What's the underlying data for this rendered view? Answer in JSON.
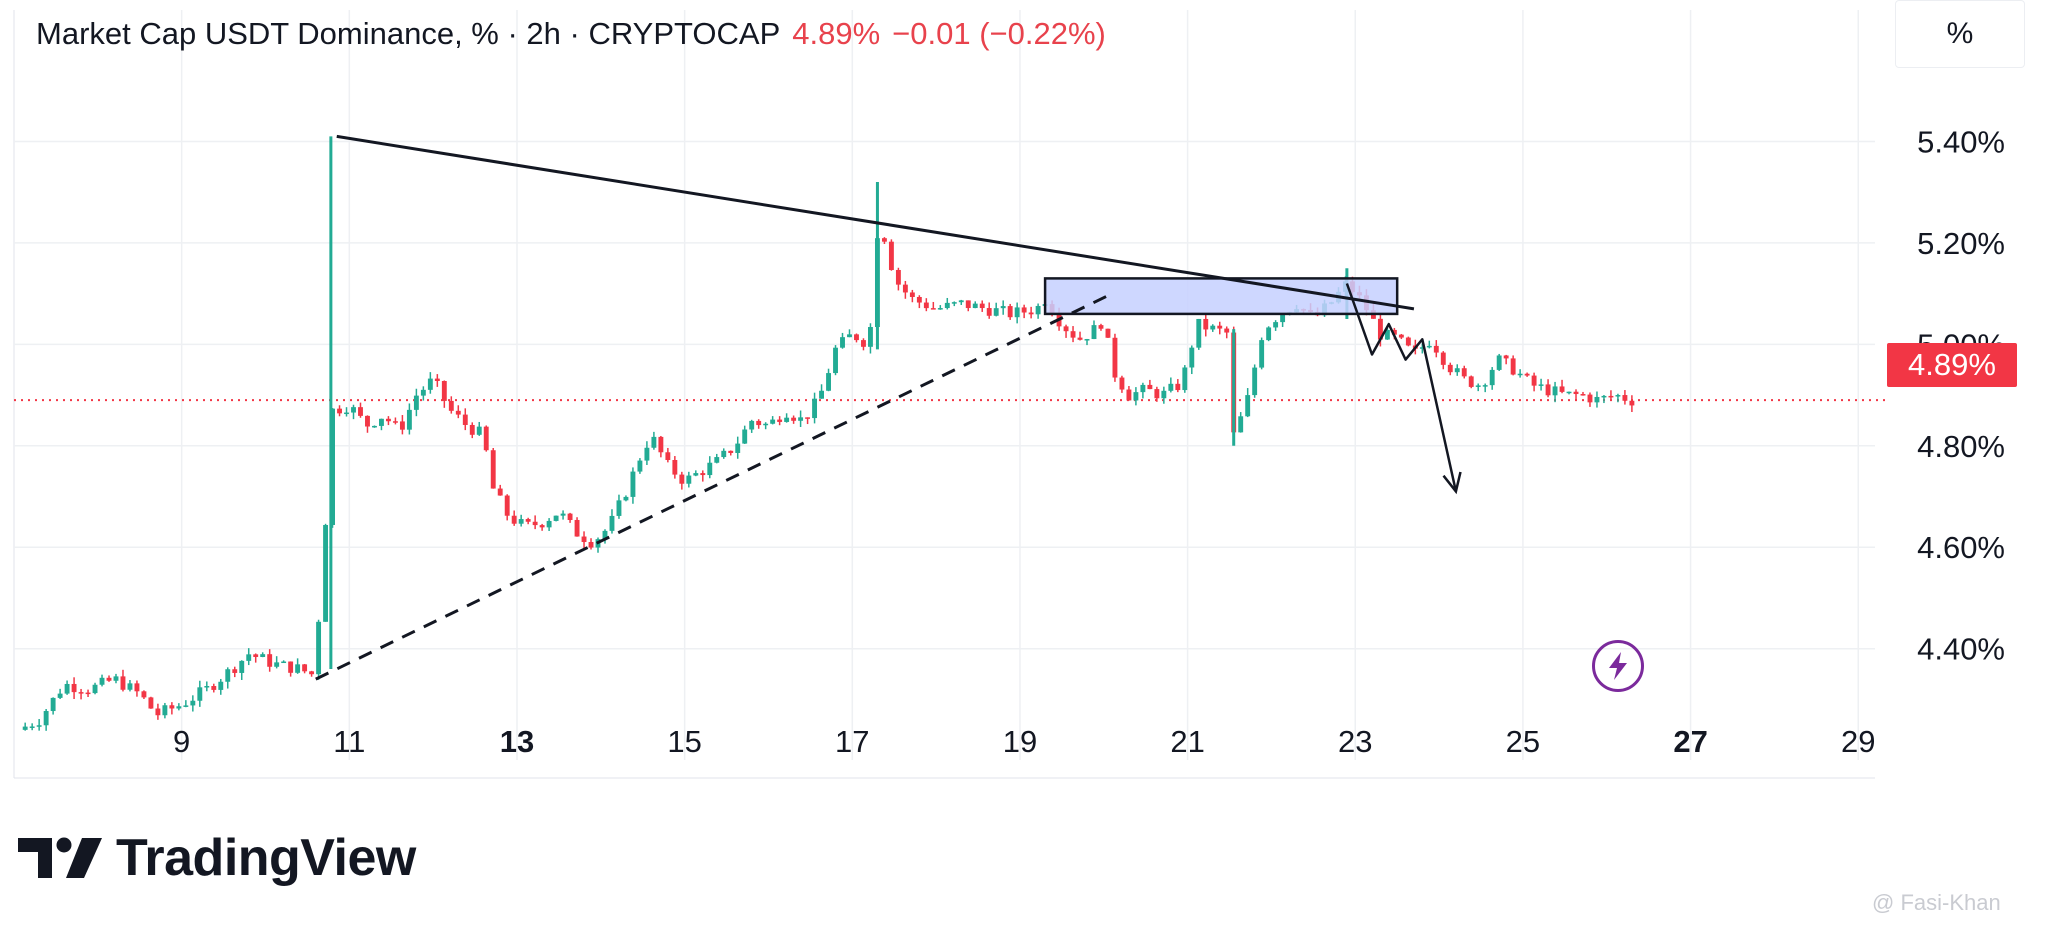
{
  "header": {
    "title": "Market Cap USDT Dominance, % · 2h · CRYPTOCAP",
    "last_value": "4.89%",
    "change": "−0.01 (−0.22%)"
  },
  "scale_button_label": "%",
  "price_tag": "4.89%",
  "brand": "TradingView",
  "credit": "@ Fasi-Khan",
  "colors": {
    "up": "#22ab94",
    "down": "#f23645",
    "accent": "#7b2a9c",
    "zone": "#c5d0ff"
  },
  "chart_data": {
    "type": "candlestick",
    "title": "Market Cap USDT Dominance, % · 2h · CRYPTOCAP",
    "x_ticks": [
      {
        "label": "9",
        "day": 9,
        "bold": false
      },
      {
        "label": "11",
        "day": 11,
        "bold": false
      },
      {
        "label": "13",
        "day": 13,
        "bold": true
      },
      {
        "label": "15",
        "day": 15,
        "bold": false
      },
      {
        "label": "17",
        "day": 17,
        "bold": false
      },
      {
        "label": "19",
        "day": 19,
        "bold": false
      },
      {
        "label": "21",
        "day": 21,
        "bold": false
      },
      {
        "label": "23",
        "day": 23,
        "bold": false
      },
      {
        "label": "25",
        "day": 25,
        "bold": false
      },
      {
        "label": "27",
        "day": 27,
        "bold": true
      },
      {
        "label": "29",
        "day": 29,
        "bold": false
      }
    ],
    "y_ticks": [
      "5.40%",
      "5.20%",
      "5.00%",
      "4.80%",
      "4.60%",
      "4.40%"
    ],
    "y_tick_values": [
      5.4,
      5.2,
      5.0,
      4.8,
      4.6,
      4.4
    ],
    "ylim": [
      4.22,
      5.6
    ],
    "xlim": [
      7.0,
      29.2
    ],
    "last_price": 4.89,
    "close_path": [
      [
        7.05,
        4.24
      ],
      [
        7.3,
        4.26
      ],
      [
        7.6,
        4.33
      ],
      [
        7.9,
        4.32
      ],
      [
        8.2,
        4.34
      ],
      [
        8.5,
        4.31
      ],
      [
        8.7,
        4.27
      ],
      [
        9.0,
        4.29
      ],
      [
        9.3,
        4.32
      ],
      [
        9.6,
        4.36
      ],
      [
        9.8,
        4.39
      ],
      [
        10.1,
        4.37
      ],
      [
        10.4,
        4.36
      ],
      [
        10.55,
        4.35
      ],
      [
        10.6,
        4.4
      ],
      [
        10.7,
        4.58
      ],
      [
        10.75,
        4.8
      ],
      [
        10.8,
        4.87
      ],
      [
        11.0,
        4.88
      ],
      [
        11.2,
        4.84
      ],
      [
        11.4,
        4.86
      ],
      [
        11.6,
        4.83
      ],
      [
        11.8,
        4.9
      ],
      [
        12.0,
        4.93
      ],
      [
        12.2,
        4.87
      ],
      [
        12.4,
        4.84
      ],
      [
        12.6,
        4.82
      ],
      [
        12.7,
        4.72
      ],
      [
        12.9,
        4.66
      ],
      [
        13.1,
        4.64
      ],
      [
        13.3,
        4.65
      ],
      [
        13.5,
        4.67
      ],
      [
        13.7,
        4.63
      ],
      [
        13.9,
        4.61
      ],
      [
        14.1,
        4.64
      ],
      [
        14.3,
        4.71
      ],
      [
        14.5,
        4.79
      ],
      [
        14.6,
        4.82
      ],
      [
        14.8,
        4.76
      ],
      [
        15.0,
        4.73
      ],
      [
        15.2,
        4.75
      ],
      [
        15.4,
        4.77
      ],
      [
        15.6,
        4.8
      ],
      [
        15.8,
        4.85
      ],
      [
        16.0,
        4.84
      ],
      [
        16.2,
        4.87
      ],
      [
        16.4,
        4.85
      ],
      [
        16.6,
        4.89
      ],
      [
        16.8,
        4.99
      ],
      [
        17.0,
        5.02
      ],
      [
        17.2,
        5.0
      ],
      [
        17.25,
        5.1
      ],
      [
        17.3,
        5.22
      ],
      [
        17.4,
        5.21
      ],
      [
        17.5,
        5.13
      ],
      [
        17.7,
        5.09
      ],
      [
        18.0,
        5.07
      ],
      [
        18.3,
        5.08
      ],
      [
        18.6,
        5.07
      ],
      [
        18.9,
        5.06
      ],
      [
        19.2,
        5.07
      ],
      [
        19.3,
        5.09
      ],
      [
        19.5,
        5.04
      ],
      [
        19.7,
        5.01
      ],
      [
        19.9,
        5.03
      ],
      [
        20.0,
        5.05
      ],
      [
        20.1,
        4.95
      ],
      [
        20.3,
        4.9
      ],
      [
        20.5,
        4.91
      ],
      [
        20.7,
        4.9
      ],
      [
        20.9,
        4.92
      ],
      [
        21.0,
        4.96
      ],
      [
        21.1,
        5.04
      ],
      [
        21.3,
        5.03
      ],
      [
        21.5,
        5.02
      ],
      [
        21.55,
        4.82
      ],
      [
        21.7,
        4.88
      ],
      [
        21.9,
        5.03
      ],
      [
        22.1,
        5.06
      ],
      [
        22.3,
        5.08
      ],
      [
        22.5,
        5.05
      ],
      [
        22.7,
        5.08
      ],
      [
        22.9,
        5.12
      ],
      [
        23.1,
        5.08
      ],
      [
        23.3,
        5.02
      ],
      [
        23.5,
        5.01
      ],
      [
        23.7,
        4.98
      ],
      [
        23.9,
        5.01
      ],
      [
        24.1,
        4.96
      ],
      [
        24.3,
        4.93
      ],
      [
        24.5,
        4.92
      ],
      [
        24.7,
        4.97
      ],
      [
        24.9,
        4.95
      ],
      [
        25.1,
        4.92
      ],
      [
        25.3,
        4.91
      ],
      [
        25.5,
        4.9
      ],
      [
        25.7,
        4.9
      ],
      [
        25.9,
        4.89
      ],
      [
        26.1,
        4.9
      ],
      [
        26.3,
        4.89
      ]
    ],
    "spikes": [
      {
        "day": 10.78,
        "high": 5.41,
        "low": 4.36
      },
      {
        "day": 17.3,
        "high": 5.32,
        "low": 4.99
      },
      {
        "day": 21.55,
        "high": 5.03,
        "low": 4.8
      },
      {
        "day": 22.9,
        "high": 5.15,
        "low": 5.05
      }
    ],
    "drawings": {
      "resistance_line": [
        [
          10.85,
          5.41
        ],
        [
          23.7,
          5.07
        ]
      ],
      "support_line_dashed": [
        [
          10.6,
          4.34
        ],
        [
          20.1,
          5.1
        ]
      ],
      "zone": {
        "day_start": 19.3,
        "day_end": 23.5,
        "price_low": 5.06,
        "price_high": 5.13
      },
      "projection": [
        [
          22.9,
          5.12
        ],
        [
          23.2,
          4.98
        ],
        [
          23.4,
          5.04
        ],
        [
          23.6,
          4.97
        ],
        [
          23.8,
          5.01
        ],
        [
          24.2,
          4.71
        ]
      ]
    }
  }
}
